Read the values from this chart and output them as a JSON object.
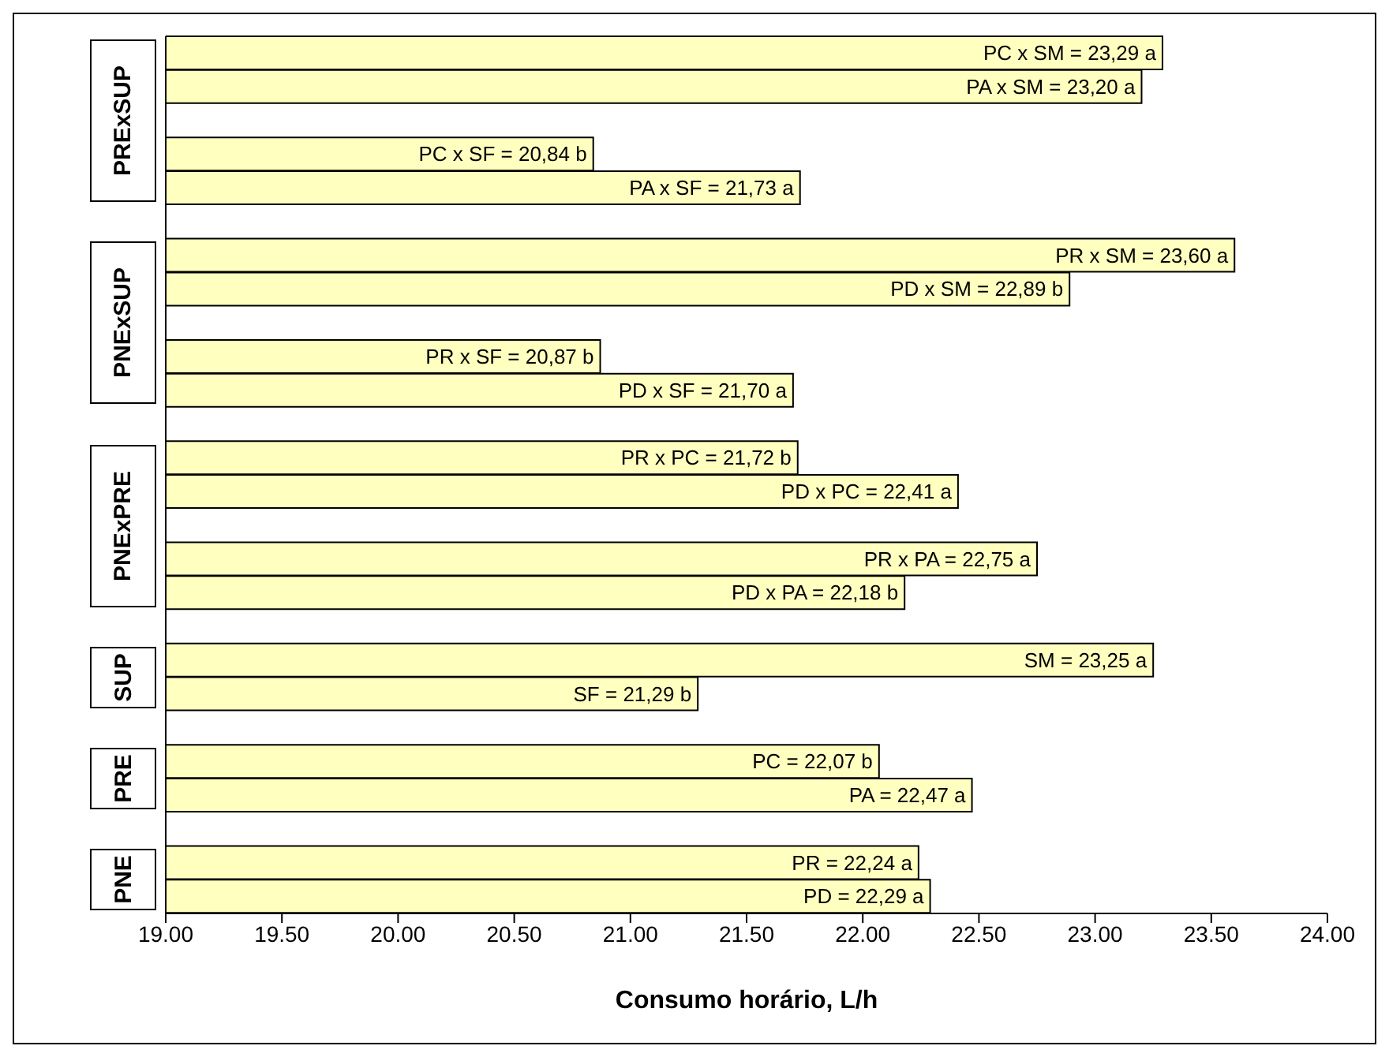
{
  "chart_data": {
    "type": "bar",
    "orientation": "horizontal",
    "xlabel": "Consumo horário, L/h",
    "categories": [
      null,
      null,
      null,
      null,
      null,
      null,
      null,
      null,
      null,
      null,
      null,
      null,
      null,
      null,
      null,
      null,
      null,
      null,
      null,
      null,
      null,
      null,
      null,
      null,
      null,
      null
    ],
    "values": [
      23.29,
      23.2,
      null,
      20.84,
      21.73,
      null,
      23.6,
      22.89,
      null,
      20.87,
      21.7,
      null,
      21.72,
      22.41,
      null,
      22.75,
      22.18,
      null,
      23.25,
      21.29,
      null,
      22.07,
      22.47,
      null,
      22.24,
      22.29
    ],
    "value_labels": [
      "PC x SM = 23,29 a",
      "PA x SM = 23,20 a",
      null,
      "PC x SF = 20,84 b",
      "PA x SF = 21,73 a",
      null,
      "PR x SM = 23,60 a",
      "PD x SM = 22,89 b",
      null,
      "PR x SF = 20,87 b",
      "PD x SF = 21,70 a",
      null,
      "PR x PC = 21,72 b",
      "PD x PC = 22,41 a",
      null,
      "PR x PA = 22,75 a",
      "PD x PA = 22,18 b",
      null,
      "SM = 23,25 a",
      "SF = 21,29 b",
      null,
      "PC = 22,07 b",
      "PA = 22,47 a",
      null,
      "PR = 22,24 a",
      "PD = 22,29 a"
    ],
    "color": "#ffffc0",
    "xlim": [
      19,
      24
    ],
    "xticks": [
      {
        "value": 19,
        "label": "19.00"
      },
      {
        "value": 19.5,
        "label": "19.50"
      },
      {
        "value": 20,
        "label": "20.00"
      },
      {
        "value": 20.5,
        "label": "20.50"
      },
      {
        "value": 21,
        "label": "21.00"
      },
      {
        "value": 21.5,
        "label": "21.50"
      },
      {
        "value": 22,
        "label": "22.00"
      },
      {
        "value": 22.5,
        "label": "22.50"
      },
      {
        "value": 23,
        "label": "23.00"
      },
      {
        "value": 23.5,
        "label": "23.50"
      },
      {
        "value": 24,
        "label": "24.00"
      }
    ],
    "tick_labels": "x",
    "annotations": [
      "PRExSUP",
      "PNExSUP",
      "PNExPRE",
      "SUP",
      "PRE",
      "PNE"
    ]
  }
}
